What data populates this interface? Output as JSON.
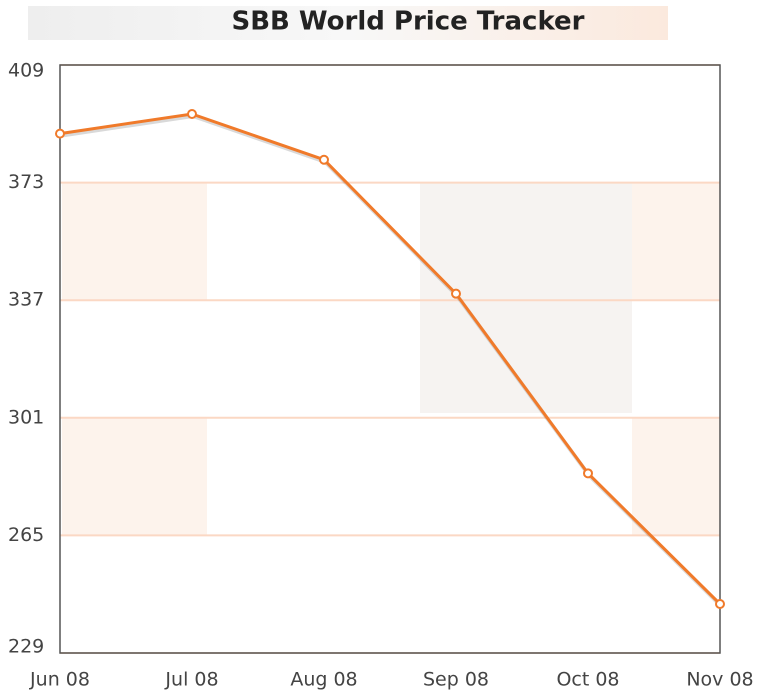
{
  "chart_data": {
    "type": "line",
    "title": "SBB World Price Tracker",
    "categories": [
      "Jun 08",
      "Jul 08",
      "Aug 08",
      "Sep 08",
      "Oct 08",
      "Nov 08"
    ],
    "series": [
      {
        "name": "SBB World Price",
        "color": "#f07a2a",
        "values": [
          388,
          394,
          380,
          339,
          284,
          244
        ]
      }
    ],
    "ylim": [
      229,
      409
    ],
    "yticks": [
      229,
      265,
      301,
      337,
      373,
      409
    ],
    "grid": true
  }
}
